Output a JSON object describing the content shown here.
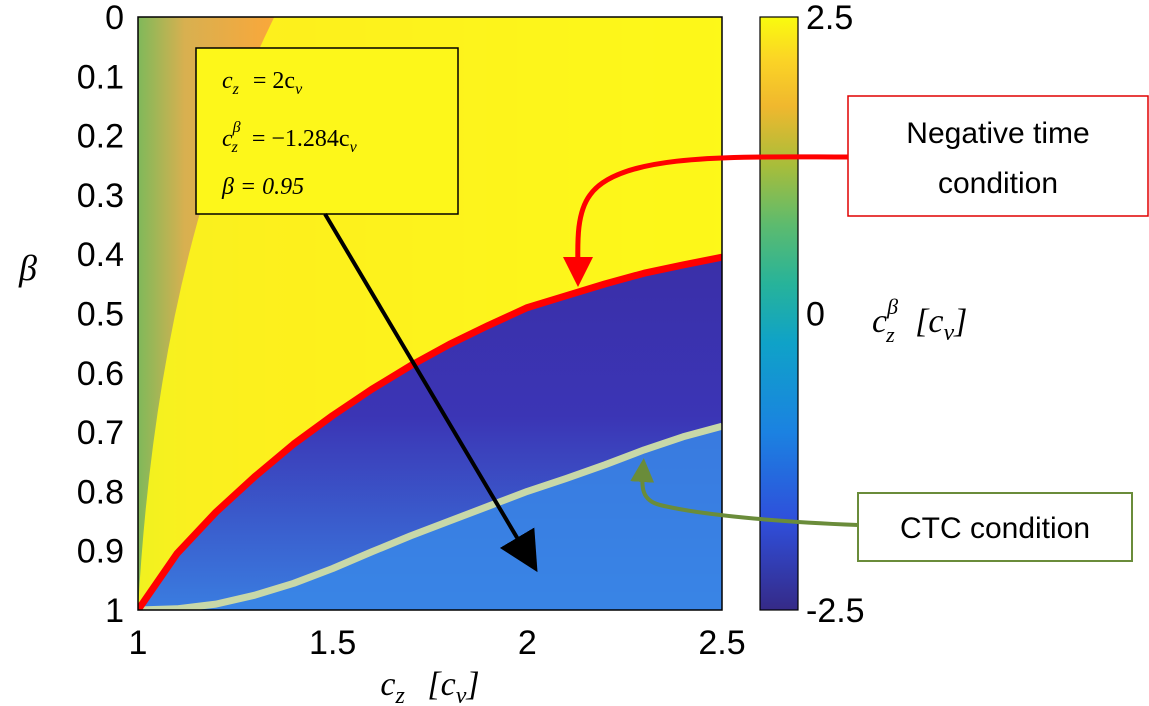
{
  "chart_data": {
    "type": "heatmap",
    "x_range": [
      1,
      2.5
    ],
    "y_range": [
      0,
      1
    ],
    "y_inverted": true,
    "x_ticks": [
      "1",
      "1.5",
      "2",
      "2.5"
    ],
    "y_ticks": [
      "0",
      "0.1",
      "0.2",
      "0.3",
      "0.4",
      "0.5",
      "0.6",
      "0.7",
      "0.8",
      "0.9",
      "1"
    ],
    "xlabel": "c_z [c_v]",
    "xlabel_main": "c",
    "xlabel_sub": "z",
    "xlabel_unit": "[c",
    "xlabel_unit_sub": "v",
    "xlabel_unit_close": "]",
    "ylabel": "β",
    "colorbar": {
      "label_main": "c",
      "label_sup": "β",
      "label_sub": "z",
      "label_unit": "[c",
      "label_unit_sub": "v",
      "label_unit_close": "]",
      "ticks": [
        "2.5",
        "0",
        "-2.5"
      ],
      "range": [
        -2.5,
        2.5
      ],
      "colormap": "parula"
    },
    "colors": {
      "negative_time_curve": "#ff0000",
      "ctc_curve": "#c8d8a8",
      "arrow_black": "#000000",
      "ctc_callout_border": "#6a8c3a",
      "negative_time_callout_border": "#e00000"
    },
    "negative_time_curve": {
      "x": [
        1.0,
        1.1,
        1.2,
        1.3,
        1.4,
        1.5,
        1.6,
        1.7,
        1.8,
        1.9,
        2.0,
        2.1,
        2.2,
        2.3,
        2.4,
        2.5
      ],
      "y": [
        1.0,
        0.905,
        0.835,
        0.775,
        0.72,
        0.672,
        0.628,
        0.588,
        0.552,
        0.52,
        0.49,
        0.47,
        0.45,
        0.432,
        0.418,
        0.405
      ]
    },
    "ctc_curve": {
      "x": [
        1.0,
        1.1,
        1.2,
        1.3,
        1.4,
        1.5,
        1.6,
        1.7,
        1.8,
        1.9,
        2.0,
        2.1,
        2.2,
        2.3,
        2.4,
        2.5
      ],
      "y": [
        1.0,
        0.998,
        0.99,
        0.975,
        0.955,
        0.93,
        0.902,
        0.875,
        0.85,
        0.825,
        0.8,
        0.778,
        0.755,
        0.73,
        0.708,
        0.69
      ]
    },
    "point_annotation": {
      "line1_lhs": "c",
      "line1_lhs_sub": "z",
      "line1_rhs": "= 2c",
      "line1_rhs_sub": "v",
      "line2_lhs": "c",
      "line2_lhs_sup": "β",
      "line2_lhs_sub": "z",
      "line2_rhs": "= −1.284c",
      "line2_rhs_sub": "v",
      "line3": "β = 0.95",
      "point": {
        "x": 2.0,
        "y": 0.95
      }
    },
    "negative_time_label": [
      "Negative time",
      "condition"
    ],
    "ctc_label": "CTC condition"
  }
}
